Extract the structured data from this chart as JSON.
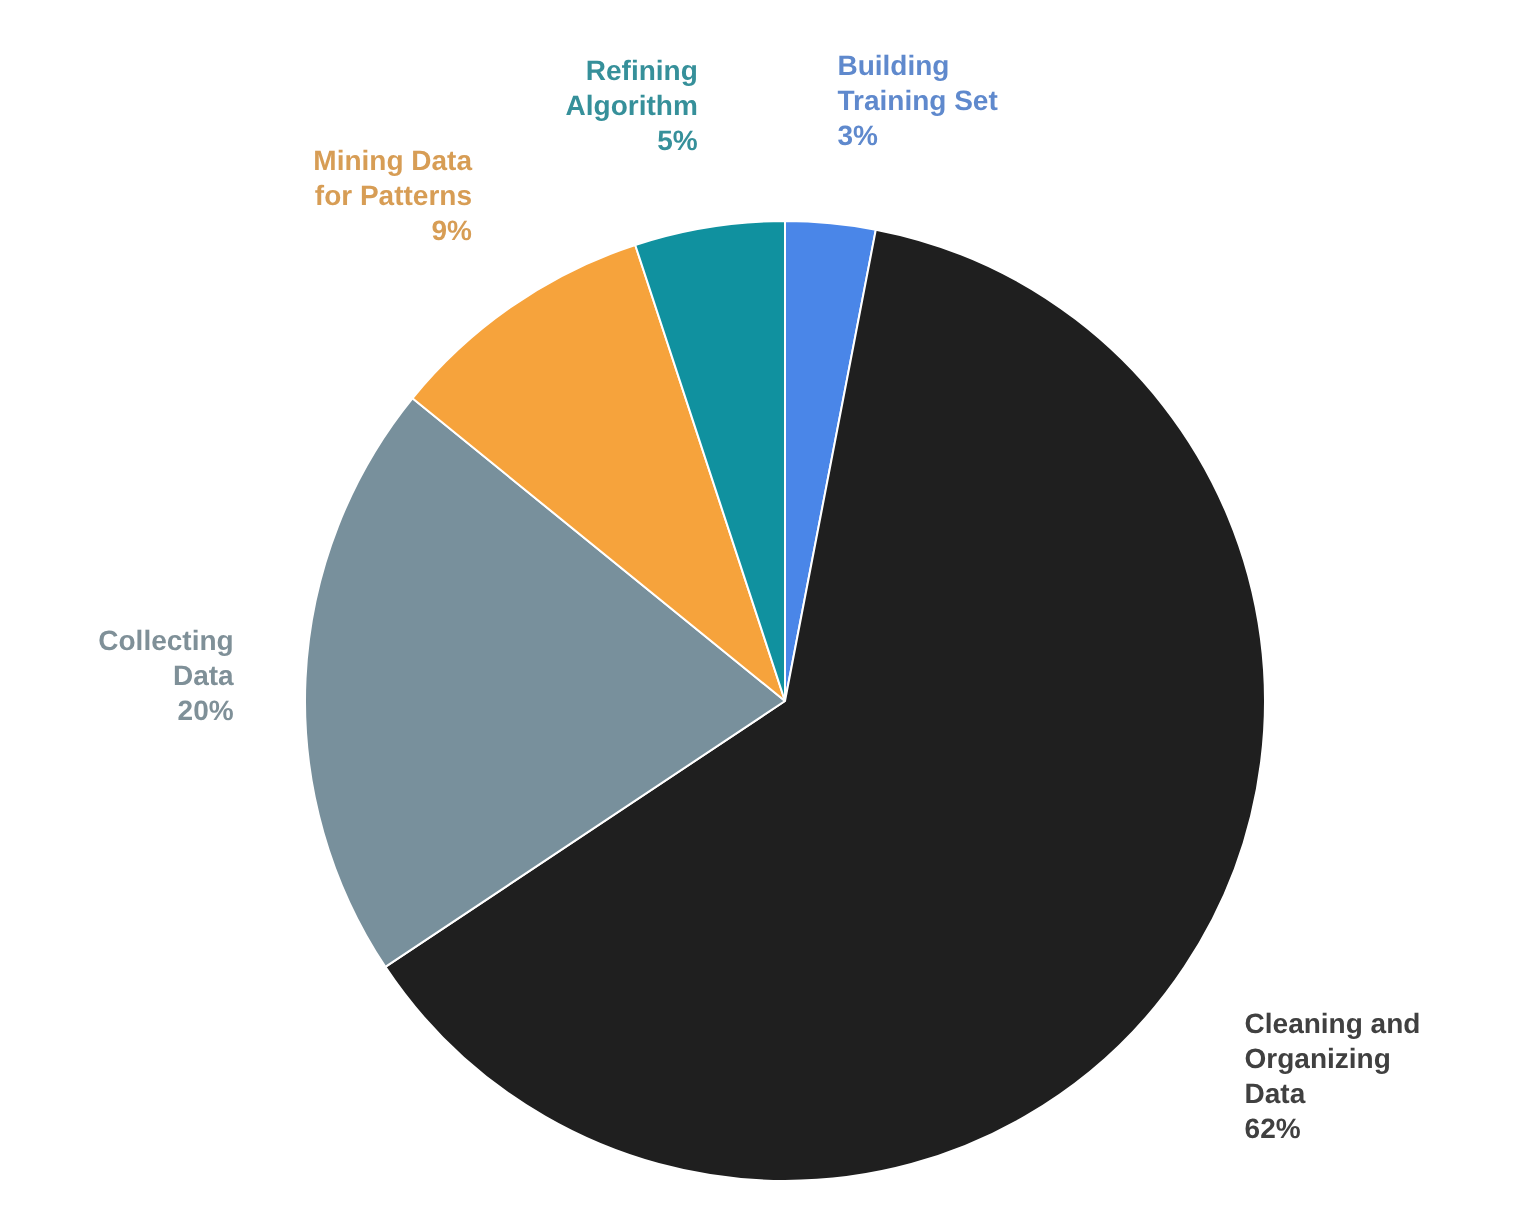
{
  "chart_data": {
    "type": "pie",
    "categories": [
      "Building Training Set",
      "Cleaning and Organizing Data",
      "Collecting Data",
      "Mining Data for Patterns",
      "Refining Algorithm"
    ],
    "values": [
      3,
      62,
      20,
      9,
      5
    ],
    "colors": [
      "#4a86e8",
      "#1f1f1f",
      "#78909c",
      "#f6a33c",
      "#10919f"
    ],
    "value_labels": [
      "3%",
      "62%",
      "20%",
      "9%",
      "5%"
    ]
  }
}
